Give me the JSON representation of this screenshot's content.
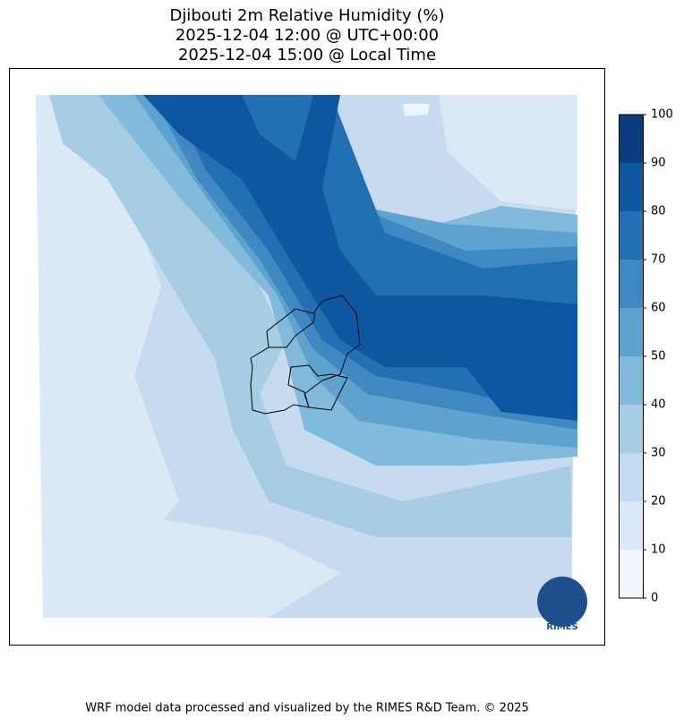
{
  "chart_data": {
    "type": "contourf",
    "title": "Djibouti 2m Relative Humidity (%)",
    "subtitle_lines": [
      "2025-12-04 12:00 @ UTC+00:00",
      "2025-12-04 15:00 @ Local Time"
    ],
    "colorbar": {
      "ticks": [
        0,
        10,
        20,
        30,
        40,
        50,
        60,
        70,
        80,
        90,
        100
      ],
      "colors": [
        "#eff5fc",
        "#dbe9f6",
        "#c6dbef",
        "#a6cde3",
        "#82badb",
        "#5ea2cf",
        "#3f88c2",
        "#2270b3",
        "#0f56a1",
        "#083c7d"
      ]
    },
    "logo_text": "RIMES",
    "footer": "WRF model data processed and visualized by the RIMES R&D Team. © 2025"
  }
}
